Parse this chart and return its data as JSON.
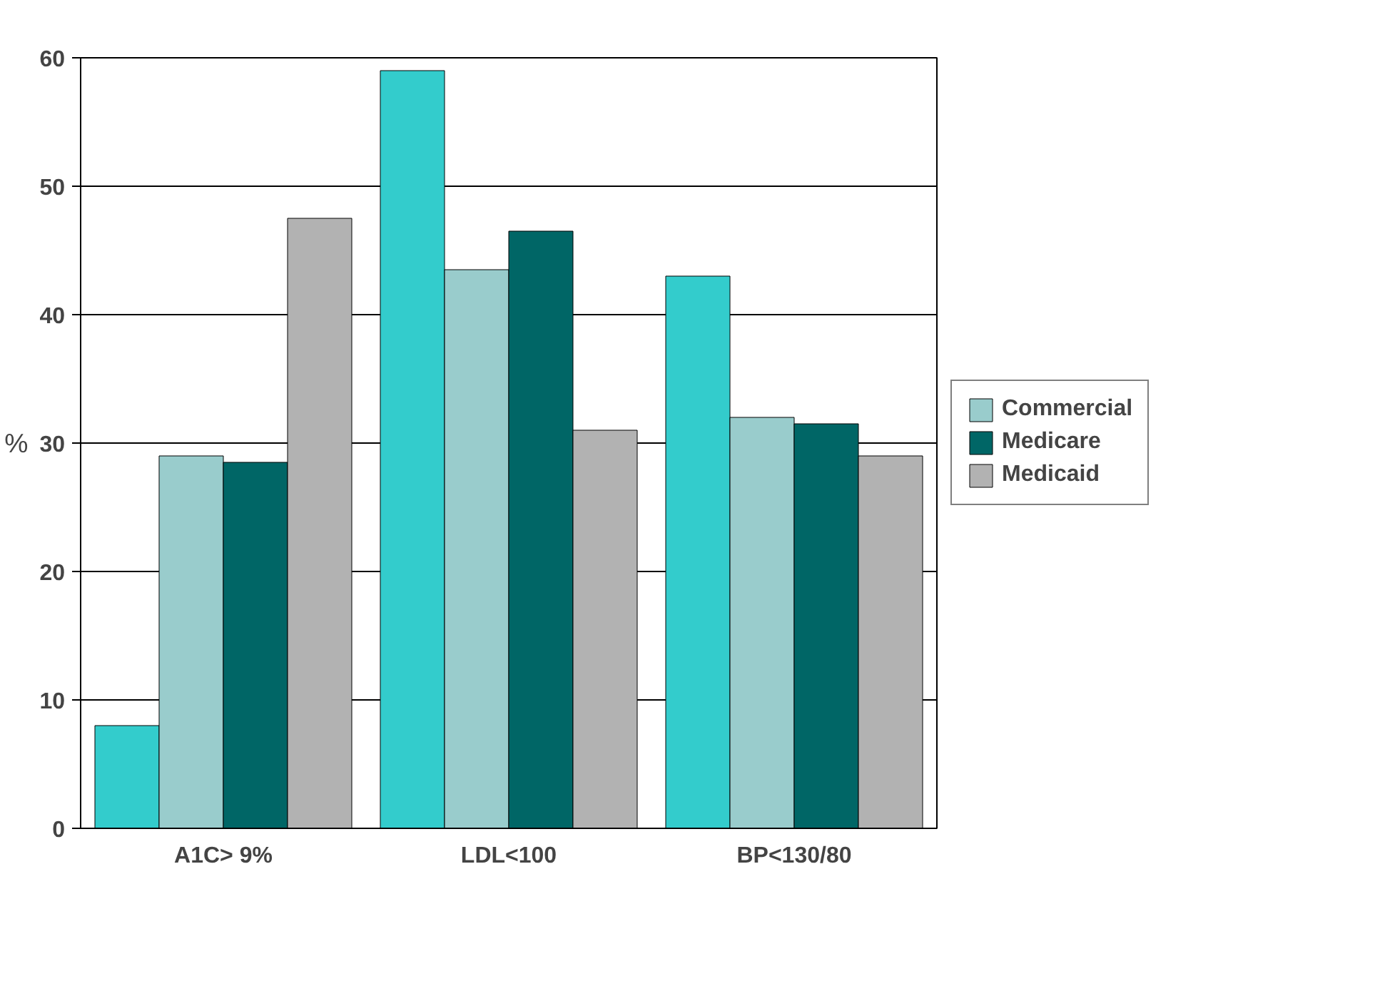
{
  "chart_data": {
    "type": "bar",
    "ylabel": "%",
    "categories": [
      "A1C> 9%",
      "LDL<100",
      "BP<130/80"
    ],
    "series": [
      {
        "color": "#33cccc",
        "values": [
          8,
          59,
          43
        ]
      },
      {
        "name": "Commercial",
        "color": "#99cccc",
        "values": [
          29,
          43.5,
          32
        ]
      },
      {
        "name": "Medicare",
        "color": "#006666",
        "values": [
          28.5,
          46.5,
          31.5
        ]
      },
      {
        "name": "Medicaid",
        "color": "#b2b2b2",
        "values": [
          47.5,
          31,
          29
        ]
      }
    ],
    "ylim": [
      0,
      60
    ],
    "yticks": [
      0,
      10,
      20,
      30,
      40,
      50,
      60
    ],
    "grid": "y",
    "legend": "right"
  }
}
